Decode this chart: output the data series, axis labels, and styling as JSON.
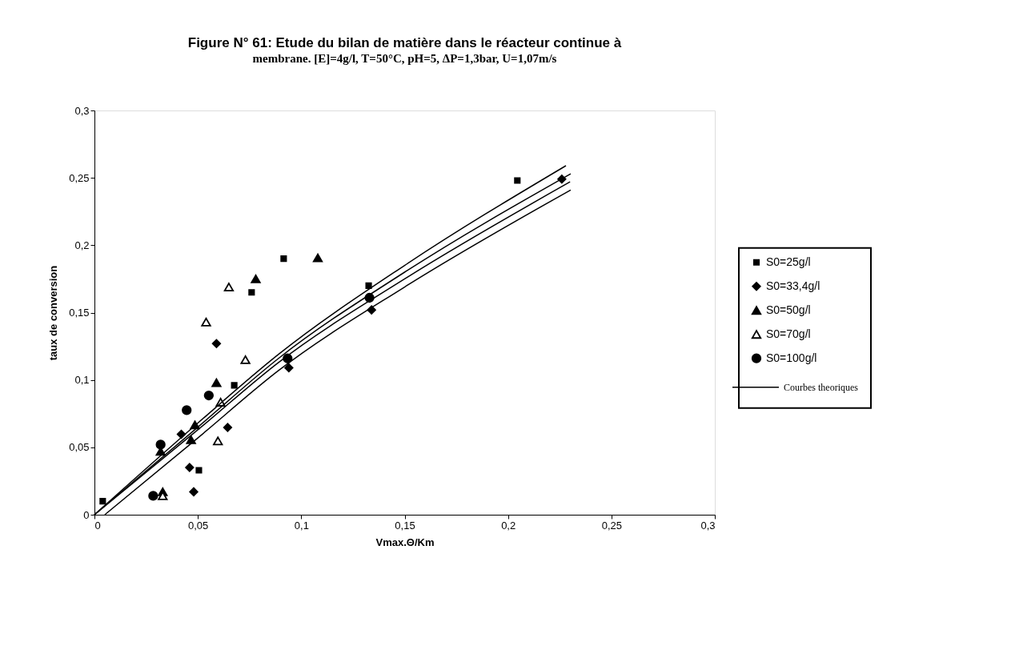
{
  "chart_data": {
    "type": "scatter",
    "title": "Figure N° 61: Etude du bilan de matière dans le réacteur continue à",
    "subtitle": "membrane. [E]=4g/l, T=50°C, pH=5, ΔP=1,3bar, U=1,07m/s",
    "xlabel": "Vmax.Θ/Km",
    "ylabel": "taux de conversion",
    "xlim": [
      0,
      0.3
    ],
    "ylim": [
      0,
      0.3
    ],
    "xticks": [
      0,
      {
        "value": 0.05,
        "label": "0,05"
      },
      {
        "value": 0.1,
        "label": "0,1"
      },
      {
        "value": 0.15,
        "label": "0,15"
      },
      {
        "value": 0.2,
        "label": "0,2"
      },
      {
        "value": 0.25,
        "label": "0,25"
      },
      {
        "value": 0.3,
        "label": "0,3"
      }
    ],
    "yticks": [
      0,
      {
        "value": 0.05,
        "label": "0,05"
      },
      {
        "value": 0.1,
        "label": "0,1"
      },
      {
        "value": 0.15,
        "label": "0,15"
      },
      {
        "value": 0.2,
        "label": "0,2"
      },
      {
        "value": 0.25,
        "label": "0,25"
      },
      {
        "value": 0.3,
        "label": "0,3"
      }
    ],
    "grid": false,
    "legend": "right",
    "series": [
      {
        "name": "S0=25g/l",
        "color": "#000000",
        "marker": "square",
        "x": [
          0.004,
          0.0505,
          0.0676,
          0.076,
          0.0915,
          0.1326,
          0.2045
        ],
        "values": [
          0.01,
          0.033,
          0.096,
          0.165,
          0.19,
          0.17,
          0.248
        ]
      },
      {
        "name": "S0=33,4g/l",
        "color": "#000000",
        "marker": "diamond",
        "x": [
          0.048,
          0.046,
          0.042,
          0.0644,
          0.059,
          0.094,
          0.134,
          0.226
        ],
        "values": [
          0.017,
          0.035,
          0.0597,
          0.0647,
          0.127,
          0.109,
          0.152,
          0.249
        ]
      },
      {
        "name": "S0=50g/l",
        "color": "#000000",
        "marker": "triangle",
        "x": [
          0.033,
          0.032,
          0.0467,
          0.0486,
          0.059,
          0.078,
          0.108
        ],
        "values": [
          0.017,
          0.047,
          0.0556,
          0.0667,
          0.098,
          0.175,
          0.1906
        ]
      },
      {
        "name": "S0=70g/l",
        "color": "#ffffff",
        "marker": "triangle",
        "x": [
          0.033,
          0.0597,
          0.061,
          0.073,
          0.054,
          0.065
        ],
        "values": [
          0.014,
          0.0548,
          0.0835,
          0.115,
          0.143,
          0.169
        ]
      },
      {
        "name": "S0=100g/l",
        "color": "#000000",
        "marker": "circle",
        "x": [
          0.0284,
          0.032,
          0.0446,
          0.0553,
          0.0934,
          0.133
        ],
        "values": [
          0.014,
          0.052,
          0.0776,
          0.0885,
          0.116,
          0.161
        ]
      },
      {
        "name": "Courbes theoriques",
        "type": "line",
        "color": "#000000",
        "marker": "none",
        "x": [
          0,
          0.05,
          0.089,
          0.15,
          0.228
        ],
        "values": [
          0,
          0.068,
          0.119,
          0.185,
          0.259
        ]
      },
      {
        "type": "line",
        "color": "#000000",
        "marker": "none",
        "x": [
          0,
          0.05,
          0.089,
          0.15,
          0.2303
        ],
        "values": [
          0,
          0.065,
          0.116,
          0.18,
          0.253
        ]
      },
      {
        "type": "line",
        "color": "#000000",
        "marker": "none",
        "x": [
          0,
          0.05,
          0.089,
          0.15,
          0.23
        ],
        "values": [
          0,
          0.063,
          0.113,
          0.175,
          0.247
        ]
      },
      {
        "type": "line",
        "color": "#000000",
        "marker": "none",
        "x": [
          0.005,
          0.05,
          0.089,
          0.15,
          0.2303
        ],
        "values": [
          0,
          0.057,
          0.107,
          0.169,
          0.241
        ]
      }
    ]
  }
}
